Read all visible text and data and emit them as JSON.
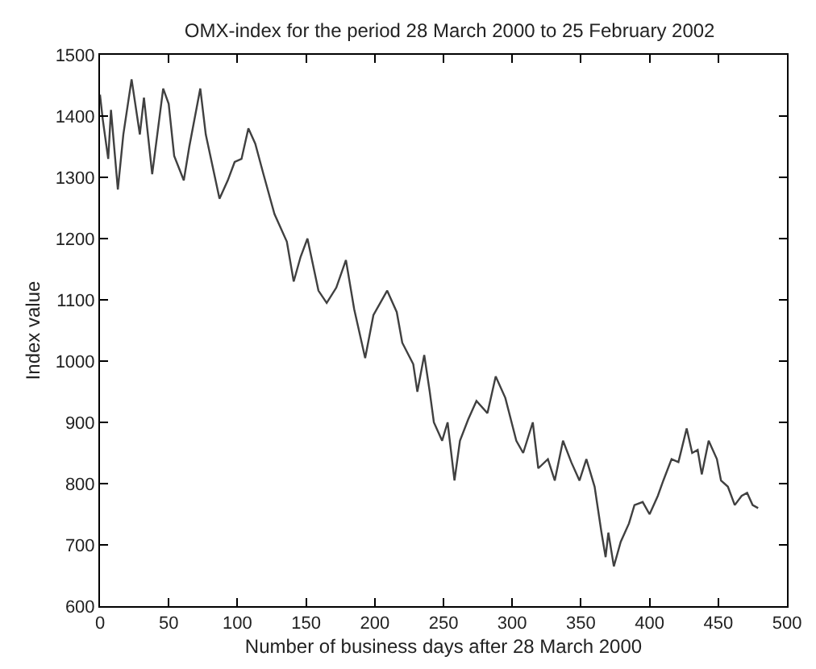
{
  "chart_data": {
    "type": "line",
    "title": "OMX-index for the period 28 March 2000 to 25 February 2002",
    "xlabel": "Number of business days after 28 March 2000",
    "ylabel": "Index value",
    "x": [
      0,
      2,
      6,
      8,
      13,
      17,
      23,
      29,
      32,
      38,
      46,
      50,
      54,
      61,
      65,
      73,
      77,
      87,
      93,
      98,
      103,
      108,
      113,
      119,
      127,
      136,
      141,
      146,
      151,
      159,
      165,
      172,
      179,
      185,
      188,
      193,
      199,
      209,
      216,
      220,
      228,
      231,
      236,
      240,
      243,
      249,
      253,
      258,
      262,
      268,
      274,
      282,
      288,
      295,
      303,
      308,
      315,
      319,
      326,
      331,
      337,
      343,
      349,
      354,
      360,
      365,
      368,
      370,
      374,
      379,
      385,
      389,
      395,
      400,
      406,
      410,
      416,
      421,
      427,
      431,
      435,
      438,
      443,
      449,
      452,
      457,
      462,
      467,
      471,
      475,
      479
    ],
    "series": [
      {
        "color": "#404040",
        "values": [
          1435,
          1395,
          1330,
          1410,
          1280,
          1370,
          1460,
          1370,
          1430,
          1305,
          1445,
          1420,
          1335,
          1295,
          1350,
          1445,
          1370,
          1265,
          1295,
          1325,
          1330,
          1380,
          1355,
          1305,
          1240,
          1195,
          1130,
          1170,
          1200,
          1115,
          1095,
          1120,
          1165,
          1085,
          1055,
          1005,
          1075,
          1115,
          1080,
          1030,
          995,
          950,
          1010,
          950,
          900,
          870,
          900,
          805,
          870,
          905,
          935,
          915,
          975,
          940,
          870,
          850,
          900,
          825,
          840,
          805,
          870,
          835,
          805,
          840,
          795,
          720,
          680,
          720,
          665,
          705,
          735,
          765,
          770,
          750,
          780,
          805,
          840,
          835,
          890,
          850,
          855,
          815,
          870,
          840,
          805,
          795,
          765,
          780,
          785,
          765,
          760
        ]
      }
    ],
    "xlim": [
      0,
      500
    ],
    "ylim": [
      600,
      1500
    ],
    "xticks": [
      0,
      50,
      100,
      150,
      200,
      250,
      300,
      350,
      400,
      450,
      500
    ],
    "yticks": [
      600,
      700,
      800,
      900,
      1000,
      1100,
      1200,
      1300,
      1400,
      1500
    ],
    "marker": "none",
    "line_style": "solid"
  }
}
